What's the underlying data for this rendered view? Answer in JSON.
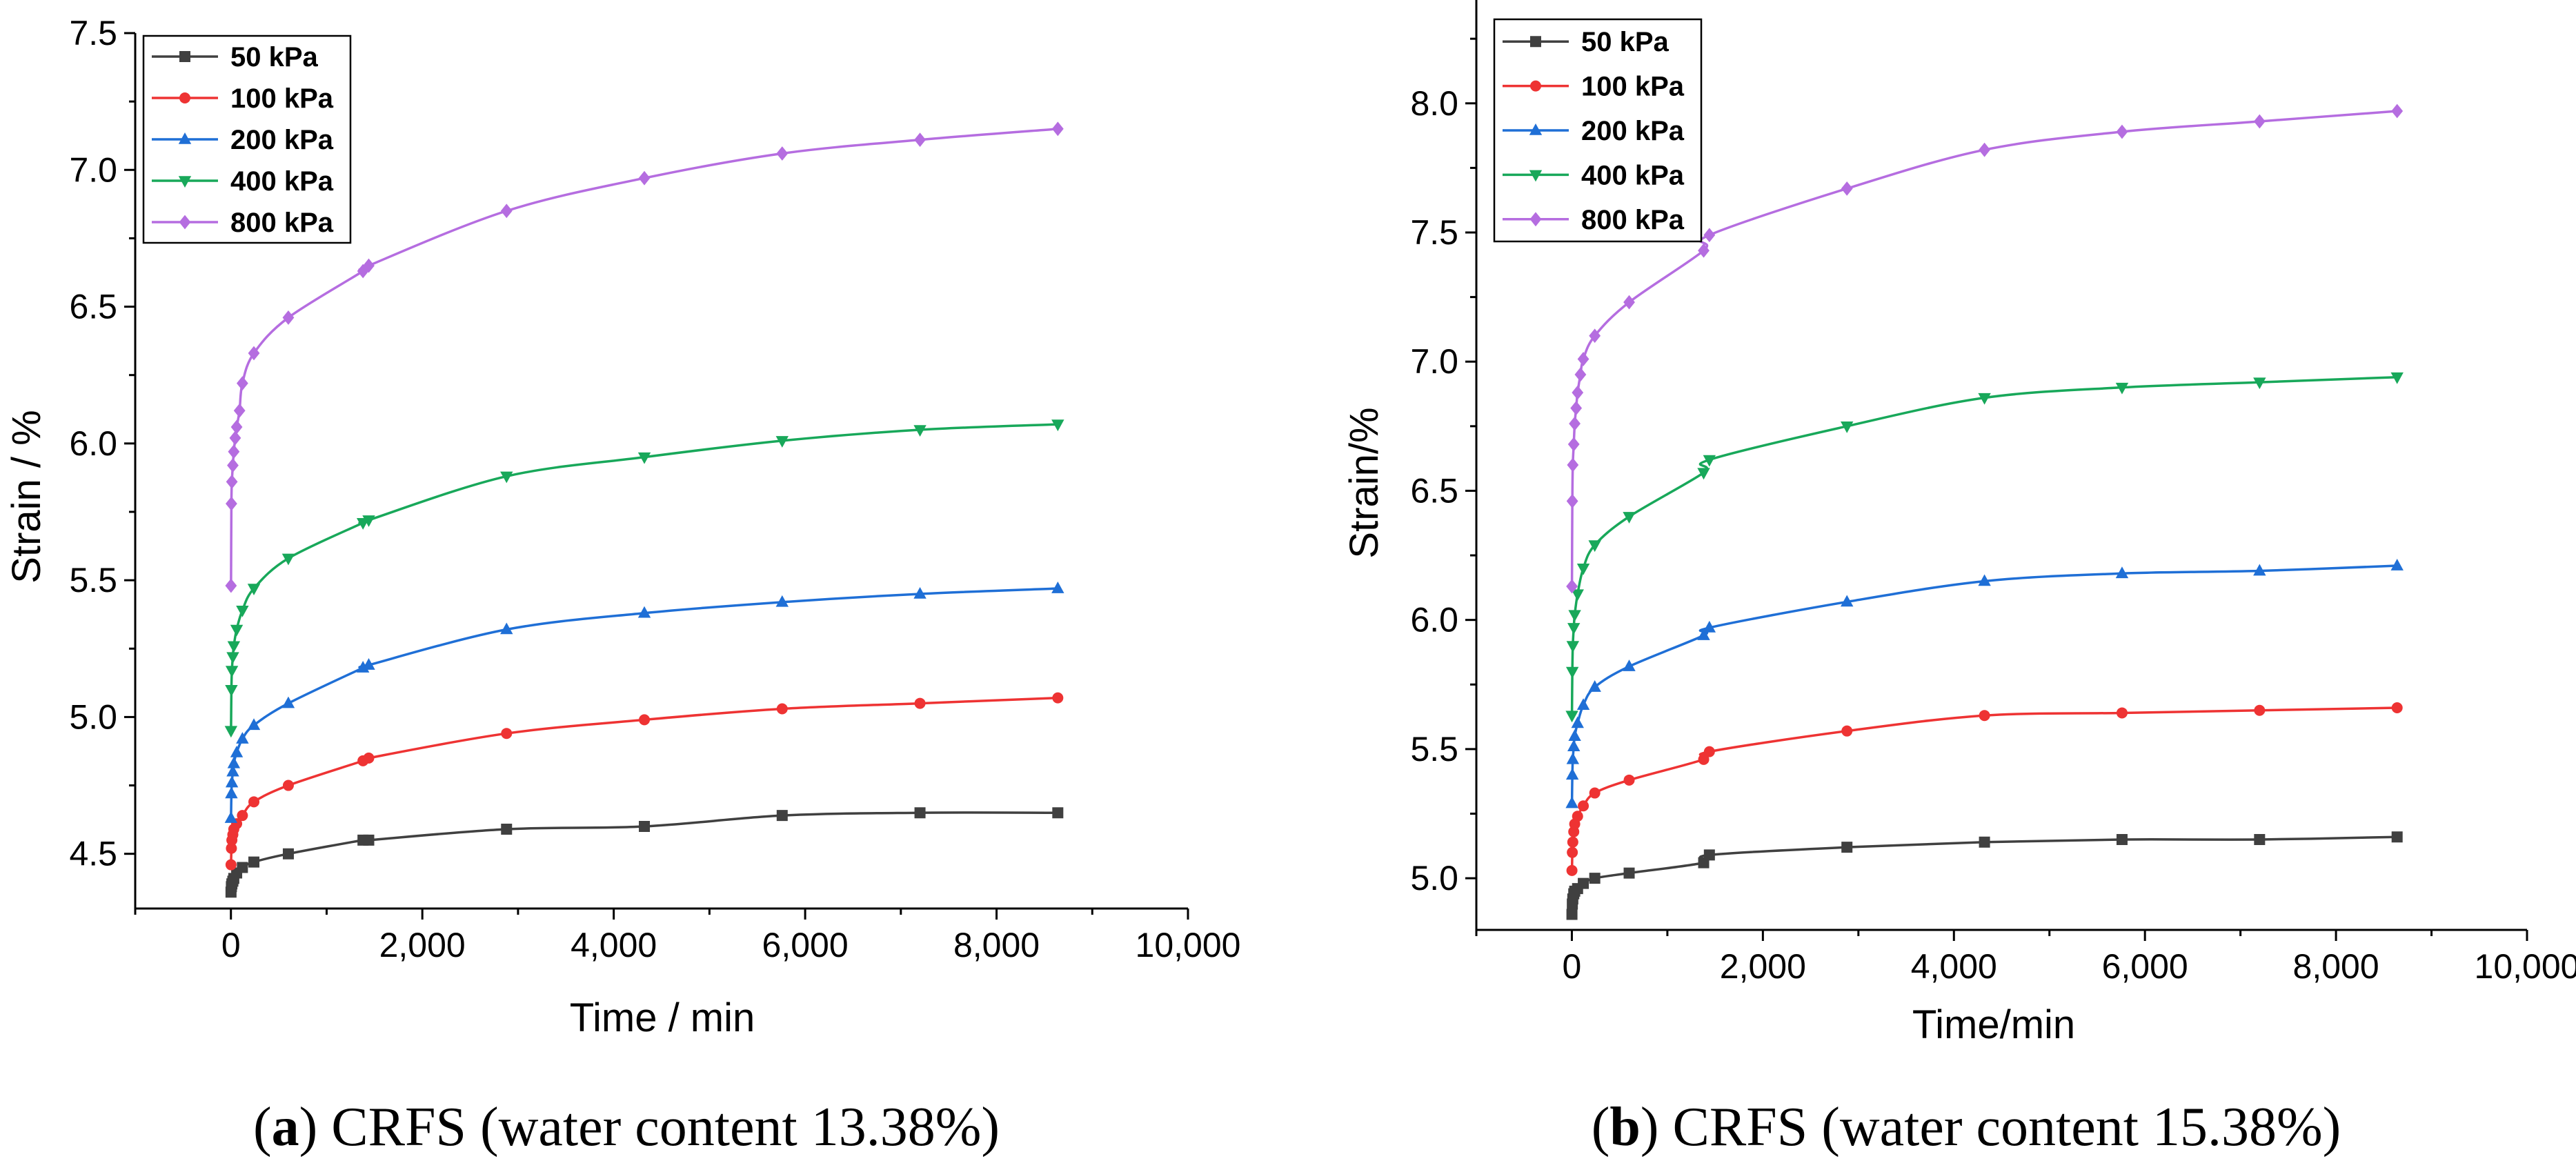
{
  "colors": {
    "s50": "#404040",
    "s100": "#ee3333",
    "s200": "#1f6fd6",
    "s400": "#18a85a",
    "s800": "#b56de0"
  },
  "chart_data": [
    {
      "type": "line",
      "panel": "a",
      "caption_label": "a",
      "caption_text": " CRFS (water content 13.38%)",
      "xlabel": "Time / min",
      "ylabel": "Strain / %",
      "xlim": [
        -1000,
        10000
      ],
      "ylim": [
        4.3,
        7.5
      ],
      "xticks": [
        0,
        2000,
        4000,
        6000,
        8000,
        10000
      ],
      "xtick_labels": [
        "0",
        "2,000",
        "4,000",
        "6,000",
        "8,000",
        "10,000"
      ],
      "yticks": [
        4.5,
        5.0,
        5.5,
        6.0,
        6.5,
        7.0,
        7.5
      ],
      "ytick_labels": [
        "4.5",
        "5.0",
        "5.5",
        "6.0",
        "6.5",
        "7.0",
        "7.5"
      ],
      "legend_position": "top-left",
      "series": [
        {
          "name": "50 kPa",
          "marker": "square",
          "color": "#404040",
          "x": [
            1,
            5,
            10,
            20,
            30,
            60,
            120,
            240,
            600,
            1380,
            1440,
            2880,
            4320,
            5760,
            7200,
            8640
          ],
          "y": [
            4.36,
            4.38,
            4.39,
            4.4,
            4.41,
            4.43,
            4.45,
            4.47,
            4.5,
            4.55,
            4.55,
            4.59,
            4.6,
            4.64,
            4.65,
            4.65
          ]
        },
        {
          "name": "100 kPa",
          "marker": "circle",
          "color": "#ee3333",
          "x": [
            1,
            5,
            10,
            20,
            30,
            60,
            120,
            240,
            600,
            1380,
            1440,
            2880,
            4320,
            5760,
            7200,
            8640
          ],
          "y": [
            4.46,
            4.52,
            4.55,
            4.57,
            4.59,
            4.61,
            4.64,
            4.69,
            4.75,
            4.84,
            4.85,
            4.94,
            4.99,
            5.03,
            5.05,
            5.07
          ]
        },
        {
          "name": "200 kPa",
          "marker": "triangle-up",
          "color": "#1f6fd6",
          "x": [
            1,
            5,
            10,
            20,
            30,
            60,
            120,
            240,
            600,
            1380,
            1440,
            2880,
            4320,
            5760,
            7200,
            8640
          ],
          "y": [
            4.63,
            4.72,
            4.76,
            4.8,
            4.83,
            4.87,
            4.92,
            4.97,
            5.05,
            5.18,
            5.19,
            5.32,
            5.38,
            5.42,
            5.45,
            5.47
          ]
        },
        {
          "name": "400 kPa",
          "marker": "triangle-down",
          "color": "#18a85a",
          "x": [
            1,
            5,
            10,
            20,
            30,
            60,
            120,
            240,
            600,
            1380,
            1440,
            2880,
            4320,
            5760,
            7200,
            8640
          ],
          "y": [
            4.95,
            5.1,
            5.17,
            5.22,
            5.26,
            5.32,
            5.39,
            5.47,
            5.58,
            5.71,
            5.72,
            5.88,
            5.95,
            6.01,
            6.05,
            6.07
          ]
        },
        {
          "name": "800 kPa",
          "marker": "diamond",
          "color": "#b56de0",
          "x": [
            1,
            5,
            10,
            20,
            30,
            45,
            60,
            90,
            120,
            240,
            600,
            1380,
            1440,
            2880,
            4320,
            5760,
            7200,
            8640
          ],
          "y": [
            5.48,
            5.78,
            5.86,
            5.92,
            5.97,
            6.02,
            6.06,
            6.12,
            6.22,
            6.33,
            6.46,
            6.63,
            6.65,
            6.85,
            6.97,
            7.06,
            7.11,
            7.15
          ]
        }
      ]
    },
    {
      "type": "line",
      "panel": "b",
      "caption_label": "b",
      "caption_text": " CRFS (water content 15.38%)",
      "xlabel": "Time/min",
      "ylabel": "Strain/%",
      "xlim": [
        -1000,
        10000
      ],
      "ylim": [
        4.8,
        8.4
      ],
      "xticks": [
        0,
        2000,
        4000,
        6000,
        8000,
        10000
      ],
      "xtick_labels": [
        "0",
        "2,000",
        "4,000",
        "6,000",
        "8,000",
        "10,000"
      ],
      "yticks": [
        5.0,
        5.5,
        6.0,
        6.5,
        7.0,
        7.5,
        8.0
      ],
      "ytick_labels": [
        "5.0",
        "5.5",
        "6.0",
        "6.5",
        "7.0",
        "7.5",
        "8.0"
      ],
      "legend_position": "top-left",
      "series": [
        {
          "name": "50 kPa",
          "marker": "square",
          "color": "#404040",
          "x": [
            1,
            5,
            10,
            20,
            30,
            60,
            120,
            240,
            600,
            1380,
            1440,
            2880,
            4320,
            5760,
            7200,
            8640
          ],
          "y": [
            4.86,
            4.9,
            4.92,
            4.94,
            4.95,
            4.96,
            4.98,
            5.0,
            5.02,
            5.06,
            5.09,
            5.12,
            5.14,
            5.15,
            5.15,
            5.16
          ]
        },
        {
          "name": "100 kPa",
          "marker": "circle",
          "color": "#ee3333",
          "x": [
            1,
            5,
            10,
            20,
            30,
            60,
            120,
            240,
            600,
            1380,
            1440,
            2880,
            4320,
            5760,
            7200,
            8640
          ],
          "y": [
            5.03,
            5.1,
            5.14,
            5.18,
            5.21,
            5.24,
            5.28,
            5.33,
            5.38,
            5.46,
            5.49,
            5.57,
            5.63,
            5.64,
            5.65,
            5.66
          ]
        },
        {
          "name": "200 kPa",
          "marker": "triangle-up",
          "color": "#1f6fd6",
          "x": [
            1,
            5,
            10,
            20,
            30,
            60,
            120,
            240,
            600,
            1380,
            1440,
            2880,
            4320,
            5760,
            7200,
            8640
          ],
          "y": [
            5.29,
            5.4,
            5.46,
            5.51,
            5.55,
            5.6,
            5.67,
            5.74,
            5.82,
            5.94,
            5.97,
            6.07,
            6.15,
            6.18,
            6.19,
            6.21
          ]
        },
        {
          "name": "400 kPa",
          "marker": "triangle-down",
          "color": "#18a85a",
          "x": [
            1,
            5,
            10,
            20,
            30,
            60,
            120,
            240,
            600,
            1380,
            1440,
            2880,
            4320,
            5760,
            7200,
            8640
          ],
          "y": [
            5.63,
            5.8,
            5.9,
            5.97,
            6.02,
            6.1,
            6.2,
            6.29,
            6.4,
            6.57,
            6.62,
            6.75,
            6.86,
            6.9,
            6.92,
            6.94
          ]
        },
        {
          "name": "800 kPa",
          "marker": "diamond",
          "color": "#b56de0",
          "x": [
            1,
            5,
            10,
            20,
            30,
            45,
            60,
            90,
            120,
            240,
            600,
            1380,
            1440,
            2880,
            4320,
            5760,
            7200,
            8640
          ],
          "y": [
            6.13,
            6.46,
            6.6,
            6.68,
            6.76,
            6.82,
            6.88,
            6.95,
            7.01,
            7.1,
            7.23,
            7.43,
            7.49,
            7.67,
            7.82,
            7.89,
            7.93,
            7.97
          ]
        }
      ]
    }
  ]
}
